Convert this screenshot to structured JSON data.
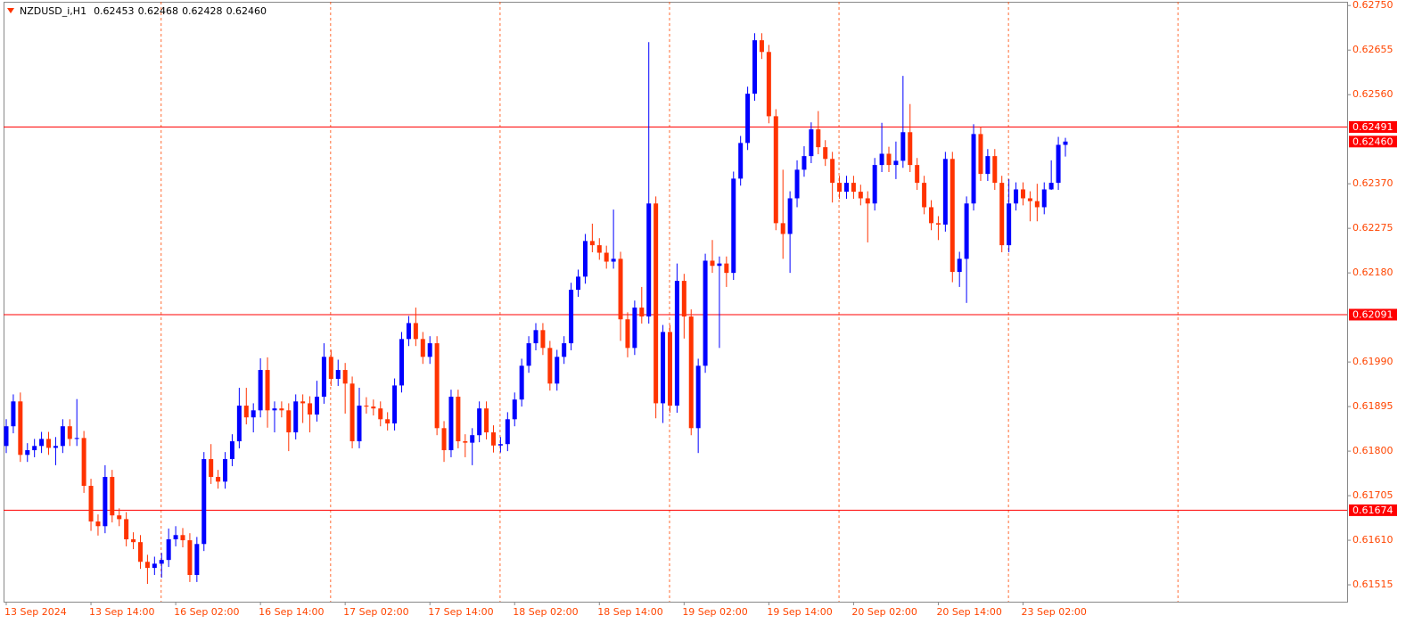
{
  "chart_data": {
    "type": "candlestick",
    "title": "NZDUSD_i,H1",
    "last_bar_labels": [
      "0.62453",
      "0.62468",
      "0.62428",
      "0.62460"
    ],
    "categories": [
      "13 Sep 2024",
      null,
      null,
      null,
      null,
      null,
      null,
      null,
      null,
      null,
      null,
      null,
      "13 Sep 14:00",
      null,
      null,
      null,
      null,
      null,
      null,
      null,
      null,
      null,
      null,
      null,
      "16 Sep 02:00",
      null,
      null,
      null,
      null,
      null,
      null,
      null,
      null,
      null,
      null,
      null,
      "16 Sep 14:00",
      null,
      null,
      null,
      null,
      null,
      null,
      null,
      null,
      null,
      null,
      null,
      "17 Sep 02:00",
      null,
      null,
      null,
      null,
      null,
      null,
      null,
      null,
      null,
      null,
      null,
      "17 Sep 14:00",
      null,
      null,
      null,
      null,
      null,
      null,
      null,
      null,
      null,
      null,
      null,
      "18 Sep 02:00",
      null,
      null,
      null,
      null,
      null,
      null,
      null,
      null,
      null,
      null,
      null,
      "18 Sep 14:00",
      null,
      null,
      null,
      null,
      null,
      null,
      null,
      null,
      null,
      null,
      null,
      "19 Sep 02:00",
      null,
      null,
      null,
      null,
      null,
      null,
      null,
      null,
      null,
      null,
      null,
      "19 Sep 14:00",
      null,
      null,
      null,
      null,
      null,
      null,
      null,
      null,
      null,
      null,
      null,
      "20 Sep 02:00",
      null,
      null,
      null,
      null,
      null,
      null,
      null,
      null,
      null,
      null,
      null,
      "20 Sep 14:00",
      null,
      null,
      null,
      null,
      null,
      null,
      null,
      null,
      null,
      null,
      null,
      "23 Sep 02:00",
      null,
      null,
      null,
      null,
      null,
      null
    ],
    "open": [
      0.61811,
      0.61853,
      0.61906,
      0.61792,
      0.61802,
      0.61811,
      0.61826,
      0.61807,
      0.61811,
      0.61853,
      0.61826,
      0.61828,
      0.61726,
      0.6165,
      0.6164,
      0.61745,
      0.61663,
      0.61655,
      0.61612,
      0.61606,
      0.61564,
      0.61551,
      0.6156,
      0.61568,
      0.61612,
      0.61621,
      0.6161,
      0.61536,
      0.61602,
      0.61783,
      0.61745,
      0.61735,
      0.61783,
      0.61821,
      0.61897,
      0.61872,
      0.61887,
      0.61973,
      0.61887,
      0.61891,
      0.61887,
      0.6184,
      0.61906,
      0.61902,
      0.61878,
      0.61916,
      0.62001,
      0.61954,
      0.61973,
      0.61944,
      0.61821,
      0.61897,
      0.61895,
      0.61891,
      0.61868,
      0.61859,
      0.6194,
      0.62039,
      0.62073,
      0.62039,
      0.62001,
      0.6203,
      0.61849,
      0.61802,
      0.61916,
      0.61821,
      0.61818,
      0.61834,
      0.61891,
      0.6184,
      0.61812,
      0.61815,
      0.61868,
      0.6191,
      0.61982,
      0.6203,
      0.62058,
      0.6202,
      0.61944,
      0.62001,
      0.6203,
      0.62144,
      0.62172,
      0.62248,
      0.62239,
      0.62223,
      0.62204,
      0.6221,
      0.62081,
      0.6202,
      0.62106,
      0.62087,
      0.62328,
      0.61902,
      0.62054,
      0.61897,
      0.62163,
      0.62087,
      0.61849,
      0.61982,
      0.62206,
      0.62195,
      0.622,
      0.6218,
      0.62381,
      0.62457,
      0.62562,
      0.62676,
      0.62651,
      0.62514,
      0.62286,
      0.62263,
      0.62339,
      0.624,
      0.62429,
      0.62486,
      0.62448,
      0.62423,
      0.62372,
      0.62353,
      0.62372,
      0.62353,
      0.62339,
      0.62328,
      0.6241,
      0.62434,
      0.6241,
      0.62419,
      0.6248,
      0.6241,
      0.62372,
      0.6232,
      0.62286,
      0.62283,
      0.62423,
      0.62182,
      0.6221,
      0.62328,
      0.62476,
      0.62391,
      0.62429,
      0.62372,
      0.62239,
      0.62328,
      0.62358,
      0.62339,
      0.62333,
      0.6232,
      0.62358,
      0.62372,
      0.62453
    ],
    "high": [
      0.61868,
      0.61921,
      0.61925,
      0.61817,
      0.61826,
      0.61841,
      0.61841,
      0.6183,
      0.61868,
      0.61868,
      0.61911,
      0.61843,
      0.61741,
      0.61665,
      0.6177,
      0.6176,
      0.61678,
      0.6167,
      0.61627,
      0.61621,
      0.61579,
      0.61575,
      0.61583,
      0.61635,
      0.6164,
      0.61636,
      0.61625,
      0.61617,
      0.61798,
      0.61815,
      0.6176,
      0.61798,
      0.61836,
      0.61935,
      0.61935,
      0.61902,
      0.61998,
      0.62,
      0.61906,
      0.61906,
      0.61902,
      0.61921,
      0.61921,
      0.61917,
      0.6195,
      0.6203,
      0.62016,
      0.61995,
      0.61988,
      0.61959,
      0.61935,
      0.61915,
      0.6191,
      0.61906,
      0.61883,
      0.61955,
      0.62054,
      0.62088,
      0.62106,
      0.62054,
      0.62045,
      0.62045,
      0.61864,
      0.61931,
      0.61931,
      0.61836,
      0.61849,
      0.61906,
      0.61906,
      0.61855,
      0.6183,
      0.61883,
      0.61925,
      0.61997,
      0.62045,
      0.62073,
      0.62073,
      0.62035,
      0.62016,
      0.62045,
      0.62159,
      0.62187,
      0.62263,
      0.62285,
      0.62254,
      0.62238,
      0.62315,
      0.62225,
      0.62096,
      0.62121,
      0.6215,
      0.62672,
      0.62343,
      0.62069,
      0.62069,
      0.622,
      0.62178,
      0.62102,
      0.61997,
      0.62221,
      0.6225,
      0.62215,
      0.62215,
      0.62396,
      0.62472,
      0.62577,
      0.62691,
      0.62691,
      0.62666,
      0.62529,
      0.624,
      0.62354,
      0.6242,
      0.6245,
      0.62501,
      0.62525,
      0.62463,
      0.62438,
      0.62387,
      0.62387,
      0.62387,
      0.62368,
      0.62354,
      0.62425,
      0.625,
      0.62449,
      0.6246,
      0.626,
      0.6254,
      0.62425,
      0.62387,
      0.62335,
      0.62301,
      0.62438,
      0.62438,
      0.62225,
      0.62343,
      0.62497,
      0.62491,
      0.62444,
      0.62444,
      0.62387,
      0.6238,
      0.62373,
      0.62373,
      0.62354,
      0.6237,
      0.62373,
      0.6242,
      0.6247,
      0.62468
    ],
    "low": [
      0.61796,
      0.61838,
      0.61777,
      0.61777,
      0.61787,
      0.61796,
      0.61792,
      0.6177,
      0.61796,
      0.61811,
      0.61811,
      0.61711,
      0.6163,
      0.6162,
      0.61625,
      0.61648,
      0.6164,
      0.61597,
      0.61591,
      0.61549,
      0.61517,
      0.61536,
      0.6153,
      0.61553,
      0.61597,
      0.61595,
      0.61521,
      0.61521,
      0.61587,
      0.6173,
      0.6172,
      0.6172,
      0.61768,
      0.61806,
      0.61857,
      0.6184,
      0.61872,
      0.6185,
      0.6184,
      0.61872,
      0.618,
      0.61825,
      0.6186,
      0.6184,
      0.61863,
      0.61901,
      0.61939,
      0.61939,
      0.6188,
      0.61806,
      0.61806,
      0.6188,
      0.61876,
      0.61853,
      0.61844,
      0.61844,
      0.61925,
      0.62024,
      0.62024,
      0.61986,
      0.61986,
      0.61834,
      0.61777,
      0.61787,
      0.61806,
      0.61787,
      0.6177,
      0.61819,
      0.61825,
      0.61797,
      0.61797,
      0.618,
      0.61853,
      0.61895,
      0.61967,
      0.62015,
      0.62005,
      0.61929,
      0.61929,
      0.61986,
      0.62015,
      0.62129,
      0.62157,
      0.62224,
      0.62208,
      0.62189,
      0.62189,
      0.62035,
      0.62,
      0.62005,
      0.62072,
      0.62072,
      0.6187,
      0.6186,
      0.61882,
      0.61882,
      0.6204,
      0.61834,
      0.61796,
      0.61967,
      0.6218,
      0.6202,
      0.6215,
      0.62165,
      0.62366,
      0.62442,
      0.62547,
      0.62636,
      0.62499,
      0.62271,
      0.6221,
      0.6218,
      0.6232,
      0.62385,
      0.62414,
      0.62433,
      0.62408,
      0.6233,
      0.62338,
      0.62338,
      0.62338,
      0.62324,
      0.62245,
      0.62313,
      0.62395,
      0.62395,
      0.6238,
      0.62404,
      0.62395,
      0.62357,
      0.62305,
      0.62271,
      0.6225,
      0.62268,
      0.6216,
      0.6215,
      0.62116,
      0.62313,
      0.62376,
      0.62376,
      0.62357,
      0.62224,
      0.62224,
      0.62313,
      0.62324,
      0.6229,
      0.6229,
      0.62305,
      0.62357,
      0.62357,
      0.62428
    ],
    "close": [
      0.61853,
      0.61906,
      0.61792,
      0.61802,
      0.61811,
      0.61826,
      0.61807,
      0.61811,
      0.61853,
      0.61826,
      0.61828,
      0.61726,
      0.6165,
      0.6164,
      0.61745,
      0.61663,
      0.61655,
      0.61612,
      0.61606,
      0.61564,
      0.61551,
      0.6156,
      0.61568,
      0.61612,
      0.61621,
      0.6161,
      0.61536,
      0.61602,
      0.61783,
      0.61745,
      0.61735,
      0.61783,
      0.61821,
      0.61897,
      0.61872,
      0.61887,
      0.61973,
      0.61887,
      0.61891,
      0.61887,
      0.6184,
      0.61906,
      0.61902,
      0.61878,
      0.61916,
      0.62001,
      0.61954,
      0.61973,
      0.61944,
      0.61821,
      0.61897,
      0.61895,
      0.61891,
      0.61868,
      0.61859,
      0.6194,
      0.62039,
      0.62073,
      0.62039,
      0.62001,
      0.6203,
      0.61849,
      0.61802,
      0.61916,
      0.61821,
      0.61818,
      0.61834,
      0.61891,
      0.6184,
      0.61812,
      0.61815,
      0.61868,
      0.6191,
      0.61982,
      0.6203,
      0.62058,
      0.6202,
      0.61944,
      0.62001,
      0.6203,
      0.62144,
      0.62172,
      0.62248,
      0.62239,
      0.62223,
      0.62204,
      0.6221,
      0.62081,
      0.6202,
      0.62106,
      0.62087,
      0.62328,
      0.61902,
      0.62054,
      0.61897,
      0.62163,
      0.62087,
      0.61849,
      0.61982,
      0.62206,
      0.62195,
      0.622,
      0.6218,
      0.62381,
      0.62457,
      0.62562,
      0.62676,
      0.62651,
      0.62514,
      0.62286,
      0.62263,
      0.62339,
      0.624,
      0.62429,
      0.62486,
      0.62448,
      0.62423,
      0.62372,
      0.62353,
      0.62372,
      0.62353,
      0.62339,
      0.62328,
      0.6241,
      0.62434,
      0.6241,
      0.62419,
      0.6248,
      0.6241,
      0.62372,
      0.6232,
      0.62286,
      0.62283,
      0.62423,
      0.62182,
      0.6221,
      0.62328,
      0.62476,
      0.62391,
      0.62429,
      0.62372,
      0.62239,
      0.62328,
      0.62358,
      0.62339,
      0.62333,
      0.6232,
      0.62358,
      0.62372,
      0.62453,
      0.6246
    ],
    "up_color": "#0000ff",
    "down_color": "#ff3300",
    "axis_color": "#ff4500",
    "level_color": "#ff0000",
    "ylim": [
      0.61479,
      0.62758
    ],
    "yticks": [
      {
        "value": 0.6275,
        "label": "0.62750"
      },
      0.62655,
      {
        "value": 0.6256,
        "label": "0.62560"
      },
      {
        "value": 0.6237,
        "label": "0.62370"
      },
      0.62275,
      {
        "value": 0.6218,
        "label": "0.62180"
      },
      {
        "value": 0.6199,
        "label": "0.61990"
      },
      0.61895,
      {
        "value": 0.618,
        "label": "0.61800"
      },
      0.61705,
      {
        "value": 0.6161,
        "label": "0.61610"
      },
      0.61515
    ],
    "levels": [
      0.62491,
      0.62091,
      0.61674
    ],
    "bid": {
      "value": 0.6246,
      "label": "0.62460"
    }
  }
}
